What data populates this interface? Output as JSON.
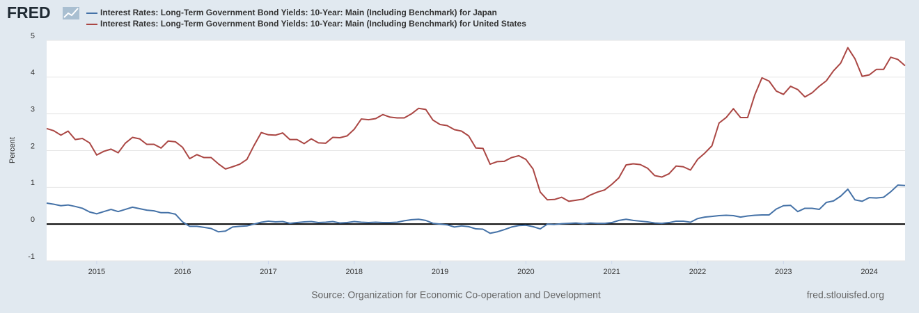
{
  "chart_data": {
    "type": "line",
    "logo": "FRED",
    "ylabel": "Percent",
    "source": "Source: Organization for Economic Co-operation and Development",
    "site": "fred.stlouisfed.org",
    "xlim": [
      2014.417,
      2024.417
    ],
    "xticks": [
      2015,
      2016,
      2017,
      2018,
      2019,
      2020,
      2021,
      2022,
      2023,
      2024
    ],
    "ylim": [
      -1,
      5
    ],
    "yticks": [
      -1,
      0,
      1,
      2,
      3,
      4,
      5
    ],
    "grid": true,
    "x": [
      2014.417,
      2014.5,
      2014.583,
      2014.667,
      2014.75,
      2014.833,
      2014.917,
      2015,
      2015.083,
      2015.167,
      2015.25,
      2015.333,
      2015.417,
      2015.5,
      2015.583,
      2015.667,
      2015.75,
      2015.833,
      2015.917,
      2016,
      2016.083,
      2016.167,
      2016.25,
      2016.333,
      2016.417,
      2016.5,
      2016.583,
      2016.667,
      2016.75,
      2016.833,
      2016.917,
      2017,
      2017.083,
      2017.167,
      2017.25,
      2017.333,
      2017.417,
      2017.5,
      2017.583,
      2017.667,
      2017.75,
      2017.833,
      2017.917,
      2018,
      2018.083,
      2018.167,
      2018.25,
      2018.333,
      2018.417,
      2018.5,
      2018.583,
      2018.667,
      2018.75,
      2018.833,
      2018.917,
      2019,
      2019.083,
      2019.167,
      2019.25,
      2019.333,
      2019.417,
      2019.5,
      2019.583,
      2019.667,
      2019.75,
      2019.833,
      2019.917,
      2020,
      2020.083,
      2020.167,
      2020.25,
      2020.333,
      2020.417,
      2020.5,
      2020.583,
      2020.667,
      2020.75,
      2020.833,
      2020.917,
      2021,
      2021.083,
      2021.167,
      2021.25,
      2021.333,
      2021.417,
      2021.5,
      2021.583,
      2021.667,
      2021.75,
      2021.833,
      2021.917,
      2022,
      2022.083,
      2022.167,
      2022.25,
      2022.333,
      2022.417,
      2022.5,
      2022.583,
      2022.667,
      2022.75,
      2022.833,
      2022.917,
      2023,
      2023.083,
      2023.167,
      2023.25,
      2023.333,
      2023.417,
      2023.5,
      2023.583,
      2023.667,
      2023.75,
      2023.833,
      2023.917,
      2024,
      2024.083,
      2024.167,
      2024.25,
      2024.333,
      2024.417
    ],
    "series": [
      {
        "name": "Interest Rates: Long-Term Government Bond Yields: 10-Year: Main (Including Benchmark) for Japan",
        "color": "#4572a7",
        "values": [
          0.57,
          0.54,
          0.5,
          0.52,
          0.48,
          0.43,
          0.33,
          0.28,
          0.34,
          0.4,
          0.34,
          0.4,
          0.46,
          0.42,
          0.38,
          0.36,
          0.31,
          0.31,
          0.27,
          0.06,
          -0.06,
          -0.06,
          -0.09,
          -0.12,
          -0.21,
          -0.19,
          -0.08,
          -0.06,
          -0.05,
          0.0,
          0.05,
          0.08,
          0.06,
          0.07,
          0.02,
          0.04,
          0.06,
          0.07,
          0.04,
          0.05,
          0.07,
          0.03,
          0.04,
          0.07,
          0.05,
          0.04,
          0.05,
          0.04,
          0.04,
          0.05,
          0.09,
          0.12,
          0.13,
          0.1,
          0.02,
          0.0,
          -0.02,
          -0.08,
          -0.05,
          -0.07,
          -0.13,
          -0.14,
          -0.25,
          -0.21,
          -0.15,
          -0.08,
          -0.04,
          -0.03,
          -0.07,
          -0.13,
          0.0,
          -0.01,
          0.01,
          0.02,
          0.03,
          0.01,
          0.03,
          0.02,
          0.02,
          0.04,
          0.1,
          0.13,
          0.1,
          0.08,
          0.06,
          0.03,
          0.02,
          0.04,
          0.08,
          0.08,
          0.05,
          0.15,
          0.19,
          0.21,
          0.23,
          0.24,
          0.23,
          0.19,
          0.22,
          0.24,
          0.25,
          0.25,
          0.41,
          0.5,
          0.51,
          0.34,
          0.43,
          0.43,
          0.4,
          0.59,
          0.63,
          0.76,
          0.95,
          0.66,
          0.62,
          0.72,
          0.71,
          0.73,
          0.88,
          1.06,
          1.05
        ]
      },
      {
        "name": "Interest Rates: Long-Term Government Bond Yields: 10-Year: Main (Including Benchmark) for United States",
        "color": "#aa4643",
        "values": [
          2.6,
          2.54,
          2.42,
          2.53,
          2.3,
          2.33,
          2.21,
          1.88,
          1.98,
          2.04,
          1.94,
          2.2,
          2.36,
          2.32,
          2.17,
          2.17,
          2.07,
          2.26,
          2.24,
          2.09,
          1.78,
          1.89,
          1.81,
          1.81,
          1.64,
          1.5,
          1.56,
          1.63,
          1.76,
          2.14,
          2.49,
          2.43,
          2.42,
          2.48,
          2.3,
          2.3,
          2.19,
          2.32,
          2.21,
          2.2,
          2.36,
          2.35,
          2.4,
          2.58,
          2.86,
          2.84,
          2.87,
          2.98,
          2.91,
          2.89,
          2.89,
          3.0,
          3.15,
          3.12,
          2.83,
          2.71,
          2.68,
          2.57,
          2.53,
          2.4,
          2.07,
          2.06,
          1.63,
          1.7,
          1.71,
          1.81,
          1.86,
          1.76,
          1.5,
          0.87,
          0.66,
          0.67,
          0.73,
          0.62,
          0.65,
          0.68,
          0.79,
          0.87,
          0.93,
          1.08,
          1.26,
          1.61,
          1.64,
          1.62,
          1.52,
          1.32,
          1.28,
          1.37,
          1.58,
          1.56,
          1.47,
          1.76,
          1.93,
          2.13,
          2.75,
          2.9,
          3.14,
          2.9,
          2.9,
          3.52,
          3.98,
          3.89,
          3.62,
          3.53,
          3.75,
          3.66,
          3.46,
          3.57,
          3.75,
          3.9,
          4.17,
          4.38,
          4.8,
          4.5,
          4.02,
          4.06,
          4.21,
          4.21,
          4.54,
          4.48,
          4.31
        ]
      }
    ]
  }
}
